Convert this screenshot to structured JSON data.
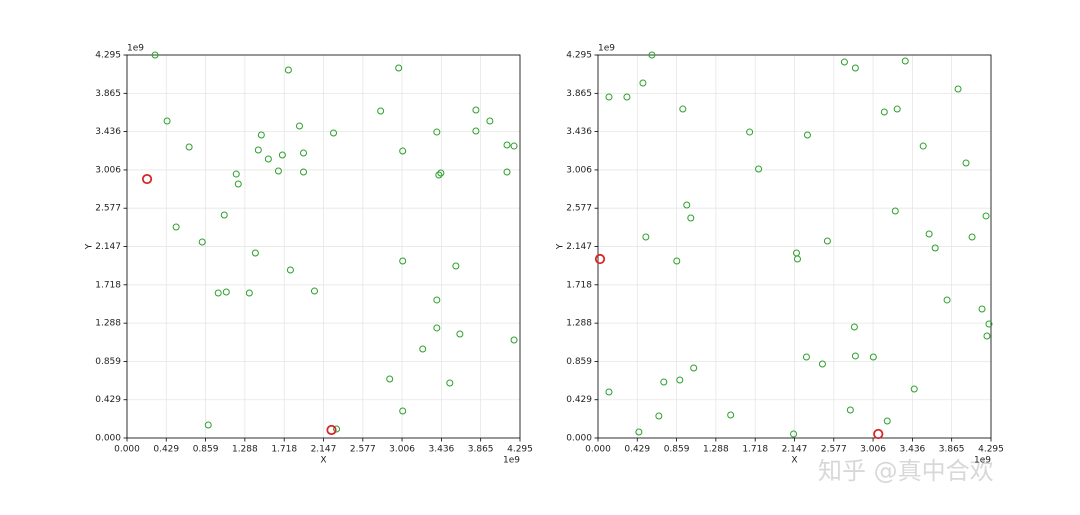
{
  "chart_data": [
    {
      "type": "scatter",
      "x_label": "X",
      "y_label": "Y",
      "x_offset_label": "1e9",
      "y_offset_label": "1e9",
      "xlim": [
        0,
        4.295
      ],
      "ylim": [
        0,
        4.295
      ],
      "xticks": [
        {
          "value": 0,
          "label": "0.000"
        },
        0.429,
        0.859,
        1.288,
        1.718,
        2.147,
        2.577,
        3.006,
        3.436,
        3.865,
        4.295
      ],
      "yticks": [
        {
          "value": 0,
          "label": "0.000"
        },
        0.429,
        0.859,
        1.288,
        1.718,
        2.147,
        2.577,
        3.006,
        3.436,
        3.865,
        4.295
      ],
      "grid": true,
      "series": [
        {
          "color": "#2ca02c",
          "x": [
            0.307,
            0.438,
            0.679,
            0.537,
            0.822,
            1.063,
            0.888,
            0.997,
            1.085,
            1.194,
            1.216,
            1.337,
            1.403,
            1.435,
            1.468,
            1.545,
            1.655,
            1.698,
            1.764,
            1.786,
            1.885,
            1.929,
            1.929,
            2.049,
            2.257,
            2.29,
            2.772,
            2.871,
            2.969,
            3.013,
            3.013,
            3.013,
            3.232,
            3.386,
            3.386,
            3.386,
            3.408,
            3.43,
            3.528,
            3.594,
            3.638,
            3.813,
            3.813,
            3.966,
            4.153,
            4.153,
            4.23,
            4.23
          ],
          "values": [
            4.295,
            3.555,
            3.263,
            2.366,
            2.198,
            2.501,
            0.146,
            1.626,
            1.637,
            2.96,
            2.848,
            1.626,
            2.075,
            3.23,
            3.398,
            3.129,
            2.994,
            3.174,
            4.127,
            1.884,
            3.499,
            3.196,
            2.983,
            1.648,
            3.42,
            0.101,
            3.667,
            0.662,
            4.149,
            3.218,
            1.985,
            0.303,
            0.998,
            3.431,
            1.548,
            1.234,
            2.949,
            2.972,
            0.617,
            1.929,
            1.166,
            3.443,
            3.678,
            3.555,
            2.983,
            3.286,
            3.274,
            1.099
          ]
        },
        {
          "color": "#d62728",
          "x": [
            0.219,
            2.235
          ],
          "values": [
            2.904,
            0.09
          ]
        }
      ]
    },
    {
      "type": "scatter",
      "x_label": "X",
      "y_label": "Y",
      "x_offset_label": "1e9",
      "y_offset_label": "1e9",
      "xlim": [
        0,
        4.295
      ],
      "ylim": [
        0,
        4.295
      ],
      "xticks": [
        {
          "value": 0,
          "label": "0.000"
        },
        0.429,
        0.859,
        1.288,
        1.718,
        2.147,
        2.577,
        3.006,
        3.436,
        3.865,
        4.295
      ],
      "yticks": [
        {
          "value": 0,
          "label": "0.000"
        },
        0.429,
        0.859,
        1.288,
        1.718,
        2.147,
        2.577,
        3.006,
        3.436,
        3.865,
        4.295
      ],
      "grid": true,
      "series": [
        {
          "color": "#2ca02c",
          "x": [
            0.12,
            0.12,
            0.316,
            0.447,
            0.491,
            0.523,
            0.589,
            0.665,
            0.719,
            0.861,
            0.894,
            0.927,
            0.97,
            1.014,
            1.046,
            1.45,
            1.657,
            1.755,
            2.137,
            2.169,
            2.18,
            2.278,
            2.289,
            2.453,
            2.507,
            2.693,
            2.758,
            2.802,
            2.813,
            2.813,
            3.009,
            3.161,
            3.129,
            3.249,
            3.27,
            3.358,
            3.456,
            3.554,
            3.619,
            3.685,
            3.815,
            3.935,
            4.022,
            4.088,
            4.197,
            4.241,
            4.251,
            4.273
          ],
          "values": [
            3.824,
            0.516,
            3.824,
            0.067,
            3.981,
            2.254,
            4.295,
            0.247,
            0.628,
            1.985,
            0.65,
            3.689,
            2.613,
            2.467,
            0.785,
            0.258,
            3.431,
            3.017,
            0.045,
            2.075,
            2.007,
            0.908,
            3.398,
            0.83,
            2.209,
            4.216,
            0.314,
            1.245,
            4.149,
            0.92,
            0.908,
            0.191,
            3.656,
            2.546,
            3.689,
            4.228,
            0.549,
            3.274,
            2.288,
            2.131,
            1.548,
            3.914,
            3.084,
            2.254,
            1.447,
            2.49,
            1.144,
            1.278
          ]
        },
        {
          "color": "#d62728",
          "x": [
            0.022,
            3.063
          ],
          "values": [
            2.007,
            0.045
          ]
        }
      ]
    }
  ],
  "watermark": "知乎 @真中合欢"
}
